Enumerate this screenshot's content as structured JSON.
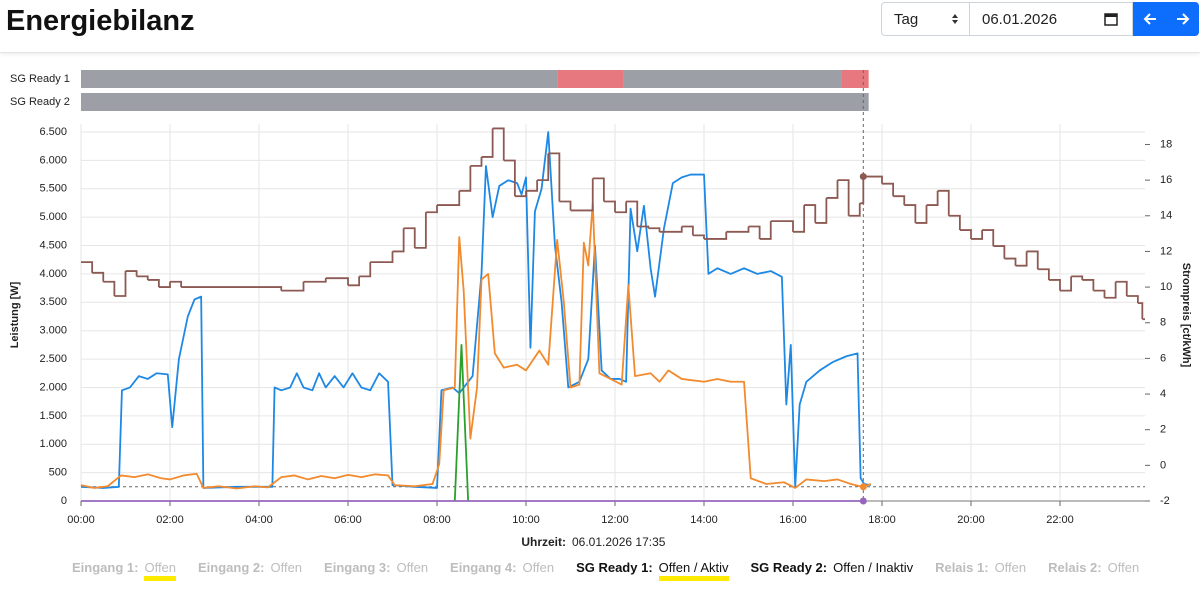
{
  "header": {
    "title": "Energiebilanz"
  },
  "controls": {
    "period": "Tag",
    "date": "06.01.2026"
  },
  "state_bars": [
    {
      "label": "SG Ready 1",
      "segments": [
        {
          "start": 0,
          "end": 10.7,
          "color": "#9ca0a6"
        },
        {
          "start": 10.7,
          "end": 12.2,
          "color": "#e8787f"
        },
        {
          "start": 12.2,
          "end": 17.1,
          "color": "#9ca0a6"
        },
        {
          "start": 17.1,
          "end": 17.7,
          "color": "#e8787f"
        }
      ]
    },
    {
      "label": "SG Ready 2",
      "segments": [
        {
          "start": 0,
          "end": 17.7,
          "color": "#9ca0a6"
        }
      ]
    }
  ],
  "chart_data": {
    "type": "line",
    "ylabel": "Leistung [W]",
    "y2label": "Strompreis [ct/kWh]",
    "xlabel": "Uhrzeit:",
    "xlim": [
      0,
      24
    ],
    "xticks": [
      {
        "value": 0,
        "label": "00:00"
      },
      {
        "value": 2,
        "label": "02:00"
      },
      {
        "value": 4,
        "label": "04:00"
      },
      {
        "value": 6,
        "label": "06:00"
      },
      {
        "value": 8,
        "label": "08:00"
      },
      {
        "value": 10,
        "label": "10:00"
      },
      {
        "value": 12,
        "label": "12:00"
      },
      {
        "value": 14,
        "label": "14:00"
      },
      {
        "value": 16,
        "label": "16:00"
      },
      {
        "value": 18,
        "label": "18:00"
      },
      {
        "value": 20,
        "label": "20:00"
      },
      {
        "value": 22,
        "label": "22:00"
      }
    ],
    "ylim": [
      0,
      6500
    ],
    "yticks": [
      0,
      500,
      {
        "value": 1000,
        "label": "1.000"
      },
      {
        "value": 1500,
        "label": "1.500"
      },
      {
        "value": 2000,
        "label": "2.000"
      },
      {
        "value": 2500,
        "label": "2.500"
      },
      {
        "value": 3000,
        "label": "3.000"
      },
      {
        "value": 3500,
        "label": "3.500"
      },
      {
        "value": 4000,
        "label": "4.000"
      },
      {
        "value": 4500,
        "label": "4.500"
      },
      {
        "value": 5000,
        "label": "5.000"
      },
      {
        "value": 5500,
        "label": "5.500"
      },
      {
        "value": 6000,
        "label": "6.000"
      },
      {
        "value": 6500,
        "label": "6.500"
      }
    ],
    "y2lim": [
      -2,
      18.7
    ],
    "y2ticks": [
      -2,
      0,
      2,
      4,
      6,
      8,
      10,
      12,
      14,
      16,
      18
    ],
    "grid": true,
    "series": [
      {
        "color": "#1e88e5",
        "x": [
          0,
          0.5,
          0.85,
          0.92,
          1.1,
          1.3,
          1.5,
          1.7,
          1.95,
          2.05,
          2.2,
          2.4,
          2.55,
          2.7,
          2.75,
          3.5,
          4.3,
          4.35,
          4.5,
          4.7,
          4.85,
          5.0,
          5.2,
          5.35,
          5.5,
          5.7,
          5.9,
          6.1,
          6.3,
          6.5,
          6.7,
          6.9,
          7.0,
          7.5,
          8.0,
          8.1,
          8.35,
          8.5,
          8.8,
          9.0,
          9.1,
          9.25,
          9.4,
          9.6,
          9.8,
          9.9,
          10.0,
          10.1,
          10.2,
          10.35,
          10.5,
          10.65,
          10.8,
          10.95,
          11.2,
          11.4,
          11.55,
          11.7,
          11.9,
          12.1,
          12.25,
          12.35,
          12.5,
          12.65,
          12.8,
          12.9,
          13.1,
          13.3,
          13.5,
          13.7,
          14.0,
          14.1,
          14.3,
          14.6,
          14.9,
          15.2,
          15.5,
          15.75,
          15.85,
          15.95,
          16.05,
          16.15,
          16.3,
          16.6,
          16.9,
          17.2,
          17.45,
          17.52,
          17.6,
          17.75
        ],
        "values": [
          250,
          230,
          250,
          1950,
          2000,
          2200,
          2150,
          2250,
          2230,
          1300,
          2500,
          3250,
          3550,
          3600,
          230,
          250,
          250,
          2000,
          1950,
          2000,
          2250,
          2000,
          1950,
          2250,
          2000,
          2200,
          2000,
          2250,
          2000,
          1950,
          2250,
          2100,
          280,
          250,
          230,
          1950,
          2000,
          1900,
          2200,
          4000,
          5900,
          5000,
          5550,
          5650,
          5600,
          5400,
          5700,
          2700,
          5100,
          5500,
          6500,
          4500,
          3500,
          2000,
          2100,
          2500,
          4500,
          2300,
          2150,
          2150,
          2100,
          5150,
          4400,
          5200,
          4100,
          3600,
          4800,
          5600,
          5700,
          5750,
          5750,
          4000,
          4100,
          4000,
          4100,
          4000,
          4050,
          3950,
          1700,
          2750,
          250,
          1700,
          2100,
          2300,
          2450,
          2550,
          2600,
          400,
          300,
          280
        ]
      },
      {
        "color": "#f28a2e",
        "x": [
          0,
          0.3,
          0.6,
          0.9,
          1.2,
          1.5,
          1.8,
          2.0,
          2.3,
          2.6,
          2.75,
          3.1,
          3.5,
          3.9,
          4.2,
          4.5,
          4.8,
          5.1,
          5.4,
          5.7,
          6.0,
          6.3,
          6.6,
          6.9,
          7.05,
          7.5,
          7.9,
          8.05,
          8.15,
          8.4,
          8.5,
          8.6,
          8.75,
          8.9,
          9.0,
          9.15,
          9.3,
          9.5,
          9.8,
          10.0,
          10.3,
          10.5,
          10.7,
          10.85,
          11.0,
          11.2,
          11.3,
          11.4,
          11.5,
          11.65,
          11.9,
          12.15,
          12.3,
          12.45,
          12.8,
          13.0,
          13.2,
          13.5,
          14.0,
          14.3,
          14.6,
          14.9,
          15.05,
          15.4,
          15.8,
          16.05,
          16.3,
          16.7,
          17.0,
          17.3,
          17.55,
          17.75
        ],
        "values": [
          280,
          230,
          260,
          450,
          420,
          470,
          400,
          380,
          450,
          480,
          230,
          260,
          220,
          260,
          240,
          420,
          450,
          380,
          440,
          400,
          460,
          420,
          470,
          450,
          280,
          260,
          300,
          650,
          1950,
          2000,
          4650,
          3700,
          1100,
          2000,
          3900,
          4000,
          2600,
          2350,
          2400,
          2300,
          2650,
          2400,
          4600,
          3500,
          2000,
          2050,
          4550,
          4150,
          5250,
          2250,
          2150,
          2050,
          3800,
          2200,
          2250,
          2100,
          2300,
          2150,
          2100,
          2150,
          2100,
          2100,
          400,
          300,
          330,
          230,
          380,
          350,
          380,
          300,
          250,
          300
        ]
      },
      {
        "color": "#2ca02c",
        "x": [
          8.4,
          8.55,
          8.7
        ],
        "values": [
          0,
          2750,
          0
        ]
      },
      {
        "color": "#9467bd",
        "x": [
          0,
          17.58
        ],
        "values": [
          0,
          0
        ]
      },
      {
        "color": "#8d5a53",
        "axis": "y2",
        "step": true,
        "x": [
          0,
          0.25,
          0.5,
          0.75,
          1,
          1.25,
          1.5,
          1.75,
          2,
          2.25,
          4.5,
          5,
          5.5,
          6,
          6.25,
          6.5,
          7,
          7.25,
          7.5,
          7.75,
          8,
          8.5,
          8.75,
          9,
          9.25,
          9.5,
          9.75,
          10,
          10.25,
          10.5,
          10.75,
          11,
          11.5,
          11.75,
          12,
          12.25,
          12.5,
          12.75,
          13,
          13.5,
          13.75,
          14,
          14.5,
          15,
          15.25,
          15.5,
          16,
          16.25,
          16.5,
          16.75,
          17,
          17.25,
          17.5,
          17.58,
          18,
          18.25,
          18.5,
          18.75,
          19,
          19.25,
          19.5,
          19.75,
          20,
          20.25,
          20.5,
          20.75,
          21,
          21.25,
          21.5,
          21.75,
          22,
          22.25,
          22.5,
          22.75,
          23,
          23.25,
          23.5,
          23.75,
          23.85
        ],
        "values": [
          11.4,
          10.8,
          10.3,
          9.5,
          10.9,
          10.6,
          10.4,
          10.0,
          10.3,
          10.0,
          9.8,
          10.3,
          10.5,
          10.1,
          10.6,
          11.4,
          12.0,
          13.3,
          12.2,
          14.2,
          14.6,
          15.4,
          16.8,
          17.3,
          18.9,
          17.1,
          15.1,
          15.4,
          16.0,
          17.5,
          14.8,
          14.3,
          16.1,
          14.8,
          14.2,
          14.8,
          13.4,
          13.3,
          13.1,
          13.4,
          12.9,
          12.7,
          13.1,
          13.4,
          12.7,
          13.7,
          13.1,
          14.6,
          13.6,
          15.0,
          16.0,
          14.0,
          14.7,
          16.2,
          15.8,
          15.1,
          14.6,
          13.6,
          14.6,
          15.4,
          14.0,
          13.2,
          12.7,
          13.2,
          12.3,
          11.6,
          11.2,
          12.0,
          11.0,
          10.4,
          9.8,
          10.6,
          10.4,
          9.8,
          9.4,
          10.3,
          9.5,
          9.1,
          8.2
        ]
      }
    ],
    "cursor": {
      "x": 17.58,
      "label": "06.01.2026 17:35",
      "hline": 250,
      "markers": [
        {
          "value": 16.2,
          "axis": "y2",
          "color": "#8d5a53"
        },
        {
          "value": 250,
          "color": "#f28a2e"
        },
        {
          "value": 0,
          "color": "#9467bd"
        }
      ]
    }
  },
  "status": [
    {
      "label": "Eingang 1:",
      "value": "Offen",
      "active": false,
      "highlight": true
    },
    {
      "label": "Eingang 2:",
      "value": "Offen",
      "active": false,
      "highlight": false
    },
    {
      "label": "Eingang 3:",
      "value": "Offen",
      "active": false,
      "highlight": false
    },
    {
      "label": "Eingang 4:",
      "value": "Offen",
      "active": false,
      "highlight": false
    },
    {
      "label": "SG Ready 1:",
      "value": "Offen / Aktiv",
      "active": true,
      "highlight": true
    },
    {
      "label": "SG Ready 2:",
      "value": "Offen / Inaktiv",
      "active": true,
      "highlight": false
    },
    {
      "label": "Relais 1:",
      "value": "Offen",
      "active": false,
      "highlight": false
    },
    {
      "label": "Relais 2:",
      "value": "Offen",
      "active": false,
      "highlight": false
    }
  ]
}
